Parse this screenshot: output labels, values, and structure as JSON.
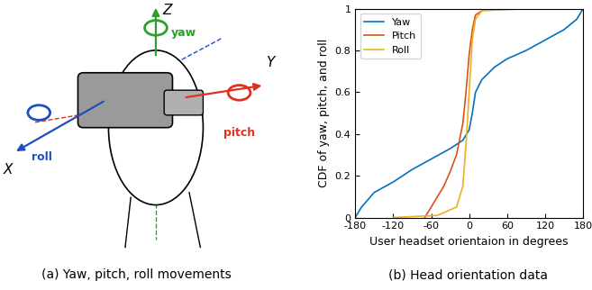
{
  "chart_data": {
    "type": "line",
    "xlabel": "User headset orientaion in degrees",
    "ylabel": "CDF of yaw, pitch, and roll",
    "caption": "(b) Head orientation data",
    "xlim": [
      -180,
      180
    ],
    "xticks": [
      -180,
      -120,
      -60,
      0,
      60,
      120,
      180
    ],
    "ylim": [
      0,
      1
    ],
    "yticks": [
      0,
      0.2,
      0.4,
      0.6,
      0.8,
      1
    ],
    "grid": false,
    "legend": "upper left",
    "series": [
      {
        "name": "Yaw",
        "color": "#0072BD",
        "x": [
          -180,
          -170,
          -150,
          -120,
          -90,
          -60,
          -30,
          -10,
          0,
          5,
          10,
          20,
          40,
          60,
          90,
          120,
          150,
          170,
          180
        ],
        "values": [
          0,
          0.05,
          0.12,
          0.17,
          0.23,
          0.28,
          0.33,
          0.37,
          0.42,
          0.5,
          0.6,
          0.66,
          0.72,
          0.76,
          0.8,
          0.85,
          0.9,
          0.95,
          1.0
        ]
      },
      {
        "name": "Pitch",
        "color": "#D95319",
        "x": [
          -70,
          -60,
          -40,
          -30,
          -20,
          -10,
          -5,
          0,
          5,
          10,
          20,
          30,
          60
        ],
        "values": [
          0,
          0.05,
          0.15,
          0.22,
          0.3,
          0.45,
          0.6,
          0.78,
          0.9,
          0.97,
          0.99,
          1.0,
          1.0
        ]
      },
      {
        "name": "Roll",
        "color": "#EDB120",
        "x": [
          -120,
          -50,
          -20,
          -10,
          -5,
          0,
          5,
          10,
          20,
          90
        ],
        "values": [
          0,
          0.01,
          0.05,
          0.15,
          0.35,
          0.6,
          0.85,
          0.95,
          0.99,
          1.0
        ]
      }
    ]
  },
  "diagram": {
    "caption": "(a) Yaw, pitch, roll movements",
    "axes": [
      {
        "name": "X",
        "rotation": "roll",
        "color": "#1f4fbf"
      },
      {
        "name": "Y",
        "rotation": "pitch",
        "color": "#e0301e"
      },
      {
        "name": "Z",
        "rotation": "yaw",
        "color": "#2ca02c"
      }
    ]
  }
}
